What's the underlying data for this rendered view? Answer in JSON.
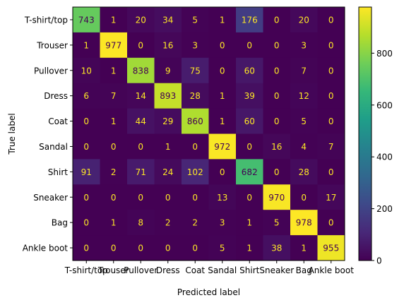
{
  "chart_data": {
    "type": "heatmap",
    "title": "",
    "xlabel": "Predicted label",
    "ylabel": "True label",
    "categories": [
      "T-shirt/top",
      "Trouser",
      "Pullover",
      "Dress",
      "Coat",
      "Sandal",
      "Shirt",
      "Sneaker",
      "Bag",
      "Ankle boot"
    ],
    "matrix": [
      [
        743,
        1,
        20,
        34,
        5,
        1,
        176,
        0,
        20,
        0
      ],
      [
        1,
        977,
        0,
        16,
        3,
        0,
        0,
        0,
        3,
        0
      ],
      [
        10,
        1,
        838,
        9,
        75,
        0,
        60,
        0,
        7,
        0
      ],
      [
        6,
        7,
        14,
        893,
        28,
        1,
        39,
        0,
        12,
        0
      ],
      [
        0,
        1,
        44,
        29,
        860,
        1,
        60,
        0,
        5,
        0
      ],
      [
        0,
        0,
        0,
        1,
        0,
        972,
        0,
        16,
        4,
        7
      ],
      [
        91,
        2,
        71,
        24,
        102,
        0,
        682,
        0,
        28,
        0
      ],
      [
        0,
        0,
        0,
        0,
        0,
        13,
        0,
        970,
        0,
        17
      ],
      [
        0,
        1,
        8,
        2,
        2,
        3,
        1,
        5,
        978,
        0
      ],
      [
        0,
        0,
        0,
        0,
        0,
        5,
        1,
        38,
        1,
        955
      ]
    ],
    "colormap": "viridis",
    "colorbar": {
      "range": [
        0,
        978
      ],
      "ticks": [
        0,
        200,
        400,
        600,
        800
      ]
    },
    "text_colors": {
      "light": "#fde725",
      "dark": "#440154"
    },
    "grid": false
  }
}
